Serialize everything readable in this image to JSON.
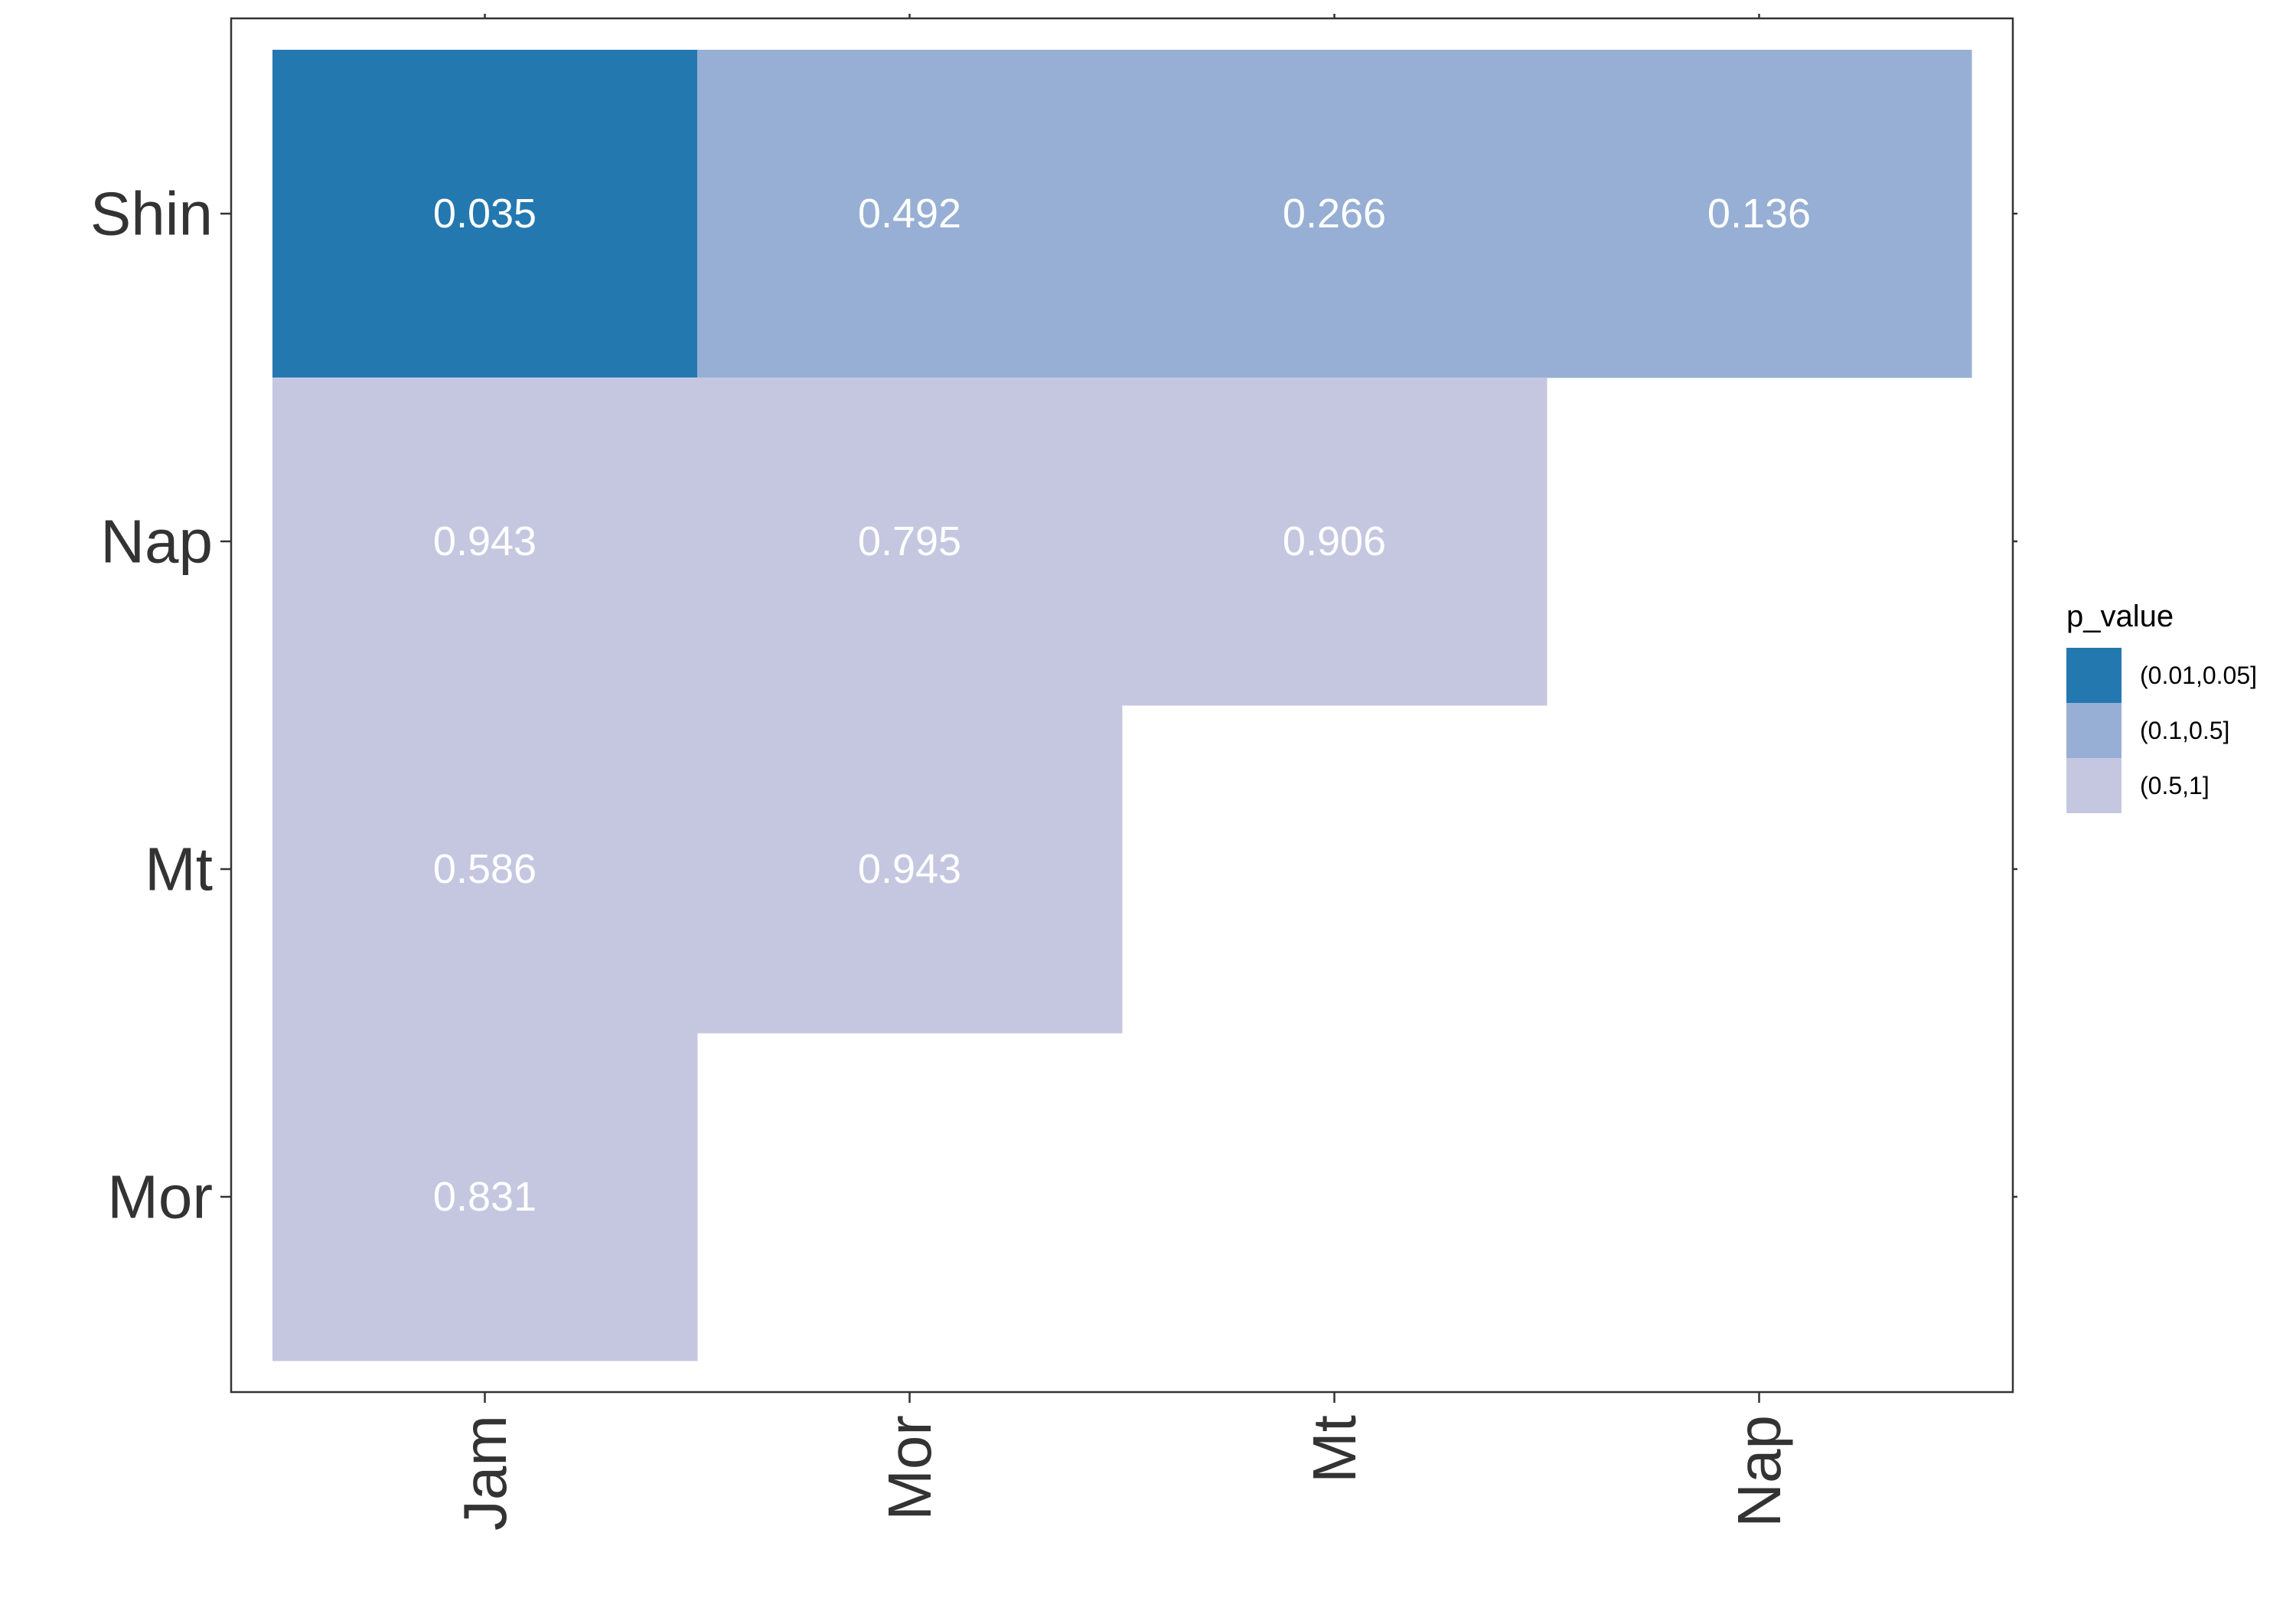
{
  "chart_data": {
    "type": "heatmap",
    "x_categories": [
      "Jam",
      "Mor",
      "Mt",
      "Nap"
    ],
    "y_categories": [
      "Mor",
      "Mt",
      "Nap",
      "Shin"
    ],
    "cells": [
      {
        "x": "Jam",
        "y": "Shin",
        "value": 0.035,
        "label": "0.035",
        "bin": "(0.01,0.05]"
      },
      {
        "x": "Mor",
        "y": "Shin",
        "value": 0.492,
        "label": "0.492",
        "bin": "(0.1,0.5]"
      },
      {
        "x": "Mt",
        "y": "Shin",
        "value": 0.266,
        "label": "0.266",
        "bin": "(0.1,0.5]"
      },
      {
        "x": "Nap",
        "y": "Shin",
        "value": 0.136,
        "label": "0.136",
        "bin": "(0.1,0.5]"
      },
      {
        "x": "Jam",
        "y": "Nap",
        "value": 0.943,
        "label": "0.943",
        "bin": "(0.5,1]"
      },
      {
        "x": "Mor",
        "y": "Nap",
        "value": 0.795,
        "label": "0.795",
        "bin": "(0.5,1]"
      },
      {
        "x": "Mt",
        "y": "Nap",
        "value": 0.906,
        "label": "0.906",
        "bin": "(0.5,1]"
      },
      {
        "x": "Jam",
        "y": "Mt",
        "value": 0.586,
        "label": "0.586",
        "bin": "(0.5,1]"
      },
      {
        "x": "Mor",
        "y": "Mt",
        "value": 0.943,
        "label": "0.943",
        "bin": "(0.5,1]"
      },
      {
        "x": "Jam",
        "y": "Mor",
        "value": 0.831,
        "label": "0.831",
        "bin": "(0.5,1]"
      }
    ],
    "legend": {
      "title": "p_value",
      "position": "right",
      "items": [
        {
          "label": "(0.01,0.05]",
          "color": "#2478b0"
        },
        {
          "label": "(0.1,0.5]",
          "color": "#97afd4"
        },
        {
          "label": "(0.5,1]",
          "color": "#c5c7e1"
        }
      ]
    },
    "title": "",
    "xlabel": "",
    "ylabel": "",
    "grid": false
  }
}
